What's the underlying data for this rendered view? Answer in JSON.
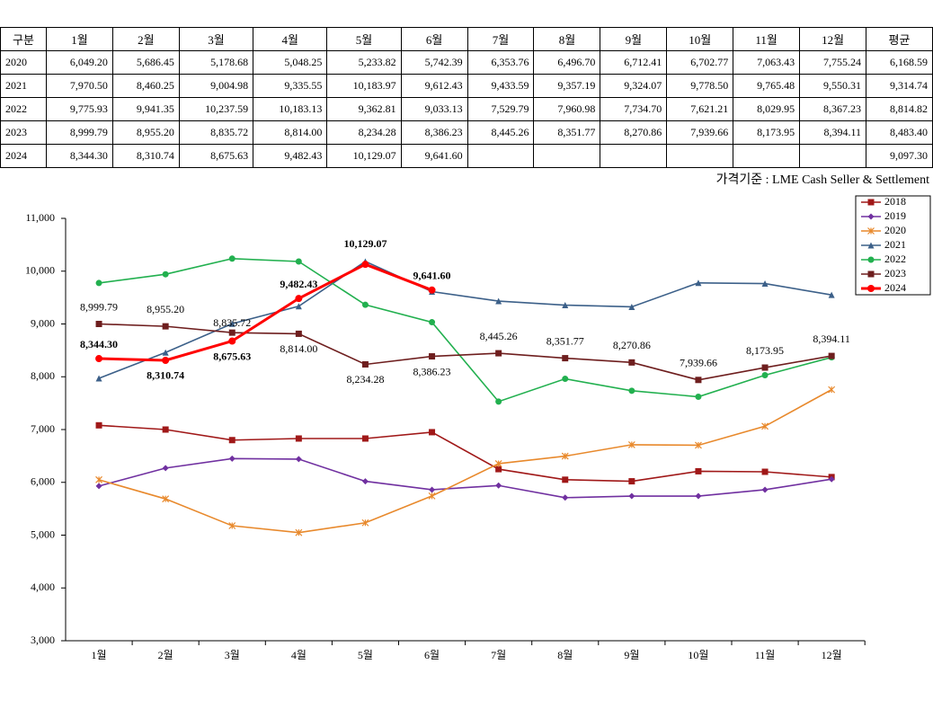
{
  "table": {
    "header": [
      "구분",
      "1월",
      "2월",
      "3월",
      "4월",
      "5월",
      "6월",
      "7월",
      "8월",
      "9월",
      "10월",
      "11월",
      "12월",
      "평균"
    ],
    "rows": [
      [
        "2020",
        "6,049.20",
        "5,686.45",
        "5,178.68",
        "5,048.25",
        "5,233.82",
        "5,742.39",
        "6,353.76",
        "6,496.70",
        "6,712.41",
        "6,702.77",
        "7,063.43",
        "7,755.24",
        "6,168.59"
      ],
      [
        "2021",
        "7,970.50",
        "8,460.25",
        "9,004.98",
        "9,335.55",
        "10,183.97",
        "9,612.43",
        "9,433.59",
        "9,357.19",
        "9,324.07",
        "9,778.50",
        "9,765.48",
        "9,550.31",
        "9,314.74"
      ],
      [
        "2022",
        "9,775.93",
        "9,941.35",
        "10,237.59",
        "10,183.13",
        "9,362.81",
        "9,033.13",
        "7,529.79",
        "7,960.98",
        "7,734.70",
        "7,621.21",
        "8,029.95",
        "8,367.23",
        "8,814.82"
      ],
      [
        "2023",
        "8,999.79",
        "8,955.20",
        "8,835.72",
        "8,814.00",
        "8,234.28",
        "8,386.23",
        "8,445.26",
        "8,351.77",
        "8,270.86",
        "7,939.66",
        "8,173.95",
        "8,394.11",
        "8,483.40"
      ],
      [
        "2024",
        "8,344.30",
        "8,310.74",
        "8,675.63",
        "9,482.43",
        "10,129.07",
        "9,641.60",
        "",
        "",
        "",
        "",
        "",
        "",
        "9,097.30"
      ]
    ],
    "note": "가격기준 : LME Cash Seller & Settlement"
  },
  "chart_data": {
    "type": "line",
    "categories": [
      "1월",
      "2월",
      "3월",
      "4월",
      "5월",
      "6월",
      "7월",
      "8월",
      "9월",
      "10월",
      "11월",
      "12월"
    ],
    "ylim": [
      3000,
      11000
    ],
    "yticks": [
      {
        "value": 3000,
        "label": "3,000"
      },
      {
        "value": 4000,
        "label": "4,000"
      },
      {
        "value": 5000,
        "label": "5,000"
      },
      {
        "value": 6000,
        "label": "6,000"
      },
      {
        "value": 7000,
        "label": "7,000"
      },
      {
        "value": 8000,
        "label": "8,000"
      },
      {
        "value": 9000,
        "label": "9,000"
      },
      {
        "value": 10000,
        "label": "10,000"
      },
      {
        "value": 11000,
        "label": "11,000"
      }
    ],
    "legend": "top-right",
    "series": [
      {
        "name": "2018",
        "color": "#a01818",
        "marker": "square",
        "values": [
          7080,
          7000,
          6800,
          6830,
          6830,
          6950,
          6250,
          6050,
          6020,
          6210,
          6200,
          6100
        ]
      },
      {
        "name": "2019",
        "color": "#7030a0",
        "marker": "diamond",
        "values": [
          5930,
          6270,
          6450,
          6440,
          6020,
          5860,
          5940,
          5710,
          5740,
          5740,
          5860,
          6060
        ]
      },
      {
        "name": "2020",
        "color": "#e8892c",
        "marker": "star",
        "values": [
          6049.2,
          5686.45,
          5178.68,
          5048.25,
          5233.82,
          5742.39,
          6353.76,
          6496.7,
          6712.41,
          6702.77,
          7063.43,
          7755.24
        ]
      },
      {
        "name": "2021",
        "color": "#3c6089",
        "marker": "triangle",
        "values": [
          7970.5,
          8460.25,
          9004.98,
          9335.55,
          10183.97,
          9612.43,
          9433.59,
          9357.19,
          9324.07,
          9778.5,
          9765.48,
          9550.31
        ]
      },
      {
        "name": "2022",
        "color": "#22b04f",
        "marker": "circle",
        "values": [
          9775.93,
          9941.35,
          10237.59,
          10183.13,
          9362.81,
          9033.13,
          7529.79,
          7960.98,
          7734.7,
          7621.21,
          8029.95,
          8367.23
        ]
      },
      {
        "name": "2023",
        "color": "#6e1e1e",
        "marker": "square",
        "values": [
          8999.79,
          8955.2,
          8835.72,
          8814.0,
          8234.28,
          8386.23,
          8445.26,
          8351.77,
          8270.86,
          7939.66,
          8173.95,
          8394.11
        ],
        "value_labels": [
          "8,999.79",
          "8,955.20",
          "8,835.72",
          "8,814.00",
          "8,234.28",
          "8,386.23",
          "8,445.26",
          "8,351.77",
          "8,270.86",
          "7,939.66",
          "8,173.95",
          "8,394.11"
        ]
      },
      {
        "name": "2024",
        "color": "#ff0000",
        "marker": "circle",
        "values": [
          8344.3,
          8310.74,
          8675.63,
          9482.43,
          10129.07,
          9641.6,
          null,
          null,
          null,
          null,
          null,
          null
        ],
        "value_labels": [
          "8,344.30",
          "8,310.74",
          "8,675.63",
          "9,482.43",
          "10,129.07",
          "9,641.60",
          null,
          null,
          null,
          null,
          null,
          null
        ]
      }
    ]
  }
}
